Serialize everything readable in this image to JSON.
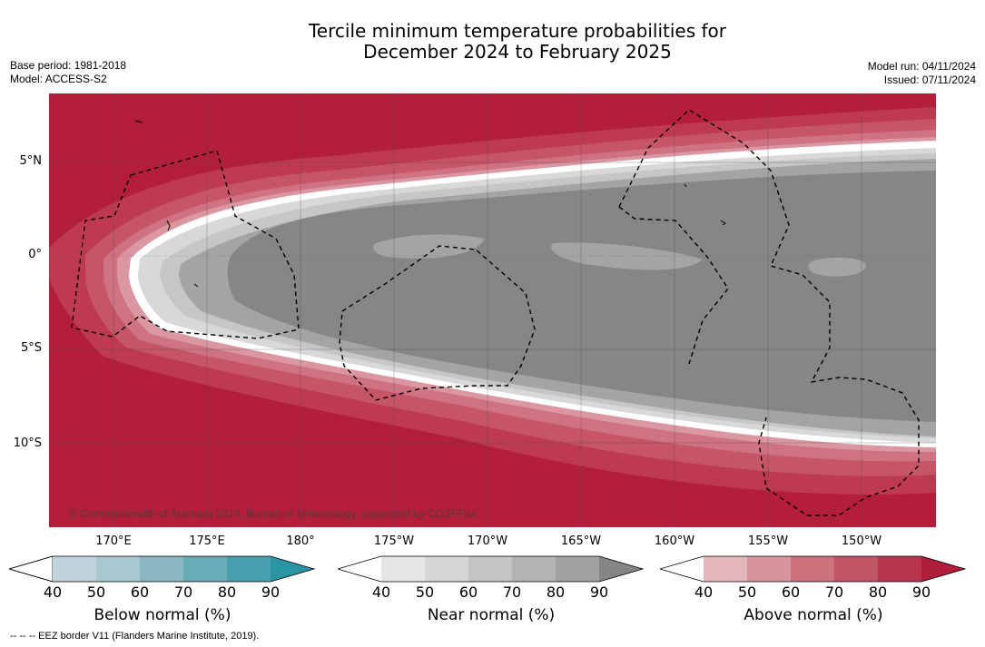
{
  "title": {
    "line1": "Tercile minimum temperature probabilities for",
    "line2": "December 2024 to February 2025"
  },
  "meta": {
    "base_period": "Base period: 1981-2018",
    "model": "Model: ACCESS-S2",
    "model_run": "Model run: 04/11/2024",
    "issued": "Issued: 07/11/2024"
  },
  "copyright": "© Commonwealth of Australia 2024, Bureau of Meteorology, supported by COSPPac",
  "footnote": "--  --  -- EEZ border V11 (Flanders Marine Institute, 2019).",
  "axes": {
    "lat_labels": [
      "5°N",
      "0°",
      "5°S",
      "10°S"
    ],
    "lon_labels": [
      "170°E",
      "175°E",
      "180°",
      "175°W",
      "170°W",
      "165°W",
      "160°W",
      "155°W",
      "150°W"
    ]
  },
  "colorbars": {
    "below": {
      "title": "Below normal (%)",
      "ticks": [
        "40",
        "50",
        "60",
        "70",
        "80",
        "90"
      ],
      "colors": [
        "#ffffff",
        "#bfd3da",
        "#a7c8cf",
        "#8bb7c2",
        "#6aabb8",
        "#4a9fae",
        "#2b94a4"
      ]
    },
    "near": {
      "title": "Near normal (%)",
      "ticks": [
        "40",
        "50",
        "60",
        "70",
        "80",
        "90"
      ],
      "colors": [
        "#ffffff",
        "#e6e6e6",
        "#d6d6d6",
        "#c4c4c4",
        "#b3b3b3",
        "#a2a2a2",
        "#858585"
      ]
    },
    "above": {
      "title": "Above normal (%)",
      "ticks": [
        "40",
        "50",
        "60",
        "70",
        "80",
        "90"
      ],
      "colors": [
        "#ffffff",
        "#e3b6bd",
        "#d7949d",
        "#cb727e",
        "#bf5465",
        "#b6354a",
        "#b01e3b"
      ]
    }
  },
  "map_colors": {
    "above_90": "#b21e3b",
    "above_80": "#bd3a51",
    "above_70": "#c65567",
    "above_60": "#cf7281",
    "above_50": "#da97a1",
    "white_band": "#ffffff",
    "near_50": "#d8d8d8",
    "near_60": "#c6c6c6",
    "near_80": "#a4a4a4",
    "near_90": "#868686"
  }
}
